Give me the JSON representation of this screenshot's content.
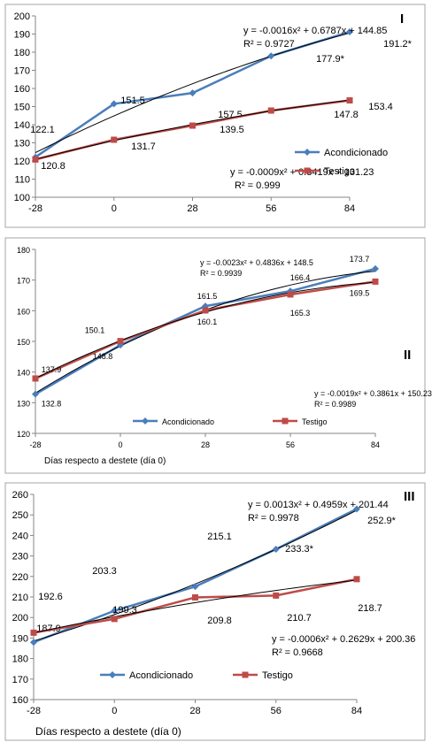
{
  "chart_data": [
    {
      "type": "line",
      "panel_label": "I",
      "x": [
        -28,
        0,
        28,
        56,
        84
      ],
      "xlabel": "",
      "ylim": [
        100,
        200
      ],
      "yticks": [
        100,
        110,
        120,
        130,
        140,
        150,
        160,
        170,
        180,
        190,
        200
      ],
      "grid": false,
      "legend_position": "right",
      "colors": {
        "Acondicionado": "#4a7ebb",
        "Testigo": "#be4b48",
        "trend": "#000000"
      },
      "series": [
        {
          "name": "Acondicionado",
          "values": [
            122.1,
            151.5,
            157.5,
            177.9,
            191.2
          ],
          "labels": [
            "122.1",
            "151.5",
            "157.5",
            "177.9*",
            "191.2*"
          ],
          "trend": [
            -0.0016,
            0.6787,
            144.85
          ]
        },
        {
          "name": "Testigo",
          "values": [
            120.8,
            131.7,
            139.5,
            147.8,
            153.4
          ],
          "labels": [
            "120.8",
            "131.7",
            "139.5",
            "147.8",
            "153.4"
          ],
          "trend": [
            -0.0009,
            0.3419,
            131.23
          ]
        }
      ],
      "equations": [
        {
          "eq": "y = -0.0016x² + 0.6787x + 144.85",
          "r2": "R² = 0.9727"
        },
        {
          "eq": "y = -0.0009x² + 0.3419x + 131.23",
          "r2": "R² = 0.999"
        }
      ]
    },
    {
      "type": "line",
      "panel_label": "II",
      "x": [
        -28,
        0,
        28,
        56,
        84
      ],
      "xlabel": "Días respecto a destete (día 0)",
      "ylim": [
        120,
        180
      ],
      "yticks": [
        120,
        130,
        140,
        150,
        160,
        170,
        180
      ],
      "grid": false,
      "legend_position": "bottom",
      "colors": {
        "Acondicionado": "#4a7ebb",
        "Testigo": "#be4b48",
        "trend": "#000000"
      },
      "series": [
        {
          "name": "Acondicionado",
          "values": [
            132.8,
            148.8,
            161.5,
            166.4,
            173.7
          ],
          "labels": [
            "132.8",
            "148.8",
            "161.5",
            "166.4",
            "173.7"
          ],
          "trend": [
            -0.0023,
            0.4836,
            148.5
          ]
        },
        {
          "name": "Testigo",
          "values": [
            137.9,
            150.1,
            160.1,
            165.3,
            169.5
          ],
          "labels": [
            "137.9",
            "150.1",
            "160.1",
            "165.3",
            "169.5"
          ],
          "trend": [
            -0.0019,
            0.3861,
            150.23
          ]
        }
      ],
      "equations": [
        {
          "eq": "y = -0.0023x² + 0.4836x + 148.5",
          "r2": "R² = 0.9939"
        },
        {
          "eq": "y = -0.0019x² + 0.3861x + 150.23",
          "r2": "R² = 0.9989"
        }
      ]
    },
    {
      "type": "line",
      "panel_label": "III",
      "x": [
        -28,
        0,
        28,
        56,
        84
      ],
      "xlabel": "Días respecto a destete (día 0)",
      "ylim": [
        160,
        260
      ],
      "yticks": [
        160,
        170,
        180,
        190,
        200,
        210,
        220,
        230,
        240,
        250,
        260
      ],
      "grid": false,
      "legend_position": "bottom",
      "colors": {
        "Acondicionado": "#4a7ebb",
        "Testigo": "#be4b48",
        "trend": "#000000"
      },
      "series": [
        {
          "name": "Acondicionado",
          "values": [
            187.9,
            203.3,
            215.1,
            233.3,
            252.9
          ],
          "labels": [
            "187.9",
            "203.3",
            "215.1",
            "233.3*",
            "252.9*"
          ],
          "trend": [
            0.0013,
            0.4959,
            201.44
          ]
        },
        {
          "name": "Testigo",
          "values": [
            192.6,
            199.3,
            209.8,
            210.7,
            218.7
          ],
          "labels": [
            "192.6",
            "199.3",
            "209.8",
            "210.7",
            "218.7"
          ],
          "trend": [
            -0.0006,
            0.2629,
            200.36
          ]
        }
      ],
      "equations": [
        {
          "eq": "y = 0.0013x² + 0.4959x + 201.44",
          "r2": "R² = 0.9978"
        },
        {
          "eq": "y = -0.0006x² + 0.2629x + 200.36",
          "r2": "R² = 0.9668"
        }
      ]
    }
  ]
}
